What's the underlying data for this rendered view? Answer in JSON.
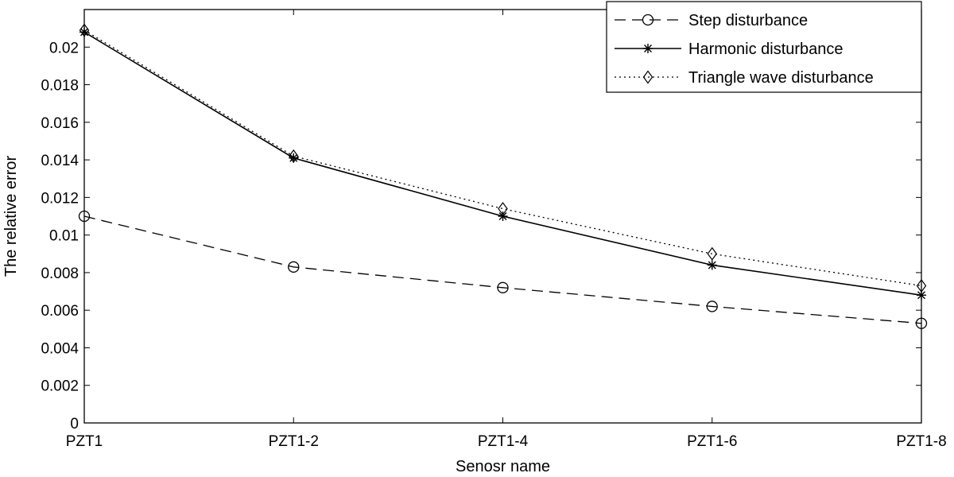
{
  "chart_data": {
    "type": "line",
    "title": "",
    "xlabel": "Senosr name",
    "ylabel": "The relative error",
    "categories": [
      "PZT1",
      "PZT1-2",
      "PZT1-4",
      "PZT1-6",
      "PZT1-8"
    ],
    "ylim": [
      0,
      0.022
    ],
    "yticks": [
      "0",
      "0.002",
      "0.004",
      "0.006",
      "0.008",
      "0.01",
      "0.012",
      "0.014",
      "0.016",
      "0.018",
      "0.02"
    ],
    "ytick_values": [
      0,
      0.002,
      0.004,
      0.006,
      0.008,
      0.01,
      0.012,
      0.014,
      0.016,
      0.018,
      0.02
    ],
    "grid": false,
    "legend_position": "top-right",
    "series": [
      {
        "name": "Step disturbance",
        "values": [
          0.011,
          0.0083,
          0.0072,
          0.0062,
          0.0053
        ],
        "line_style": "dashed",
        "marker": "circle",
        "color": "#000000"
      },
      {
        "name": "Harmonic disturbance",
        "values": [
          0.0208,
          0.0141,
          0.011,
          0.0084,
          0.0068
        ],
        "line_style": "solid",
        "marker": "asterisk",
        "color": "#000000"
      },
      {
        "name": "Triangle wave disturbance",
        "values": [
          0.0209,
          0.0142,
          0.0114,
          0.009,
          0.0073
        ],
        "line_style": "dotted",
        "marker": "diamond",
        "color": "#000000"
      }
    ]
  }
}
